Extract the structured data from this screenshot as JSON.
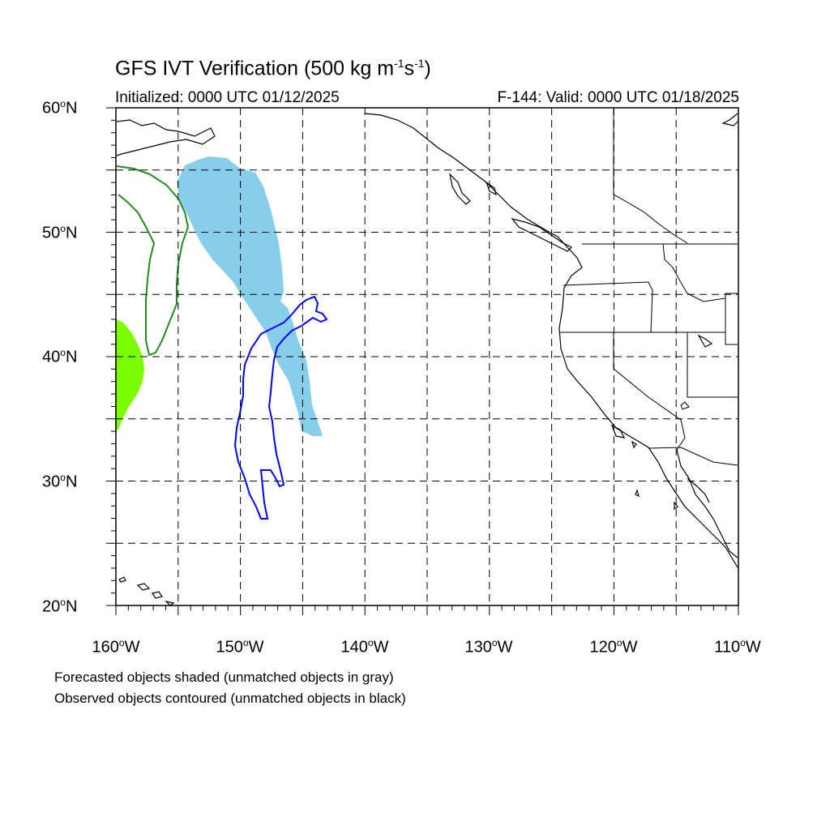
{
  "title": {
    "main": "GFS IVT Verification (500 kg m",
    "exp1": "-1",
    "mid": "s",
    "exp2": "-1",
    "end": ")"
  },
  "initialized": "Initialized: 0000 UTC 01/12/2025",
  "valid": "F-144: Valid: 0000 UTC 01/18/2025",
  "lat_labels": [
    "60",
    "50",
    "40",
    "30",
    "20"
  ],
  "lat_suffix": "N",
  "lon_labels": [
    "160",
    "150",
    "140",
    "130",
    "120",
    "110"
  ],
  "lon_suffix": "W",
  "degree_symbol": "o",
  "map_extent": {
    "lon_min": -160,
    "lon_max": -110,
    "lat_min": 20,
    "lat_max": 60
  },
  "notes": [
    "Forecasted objects shaded (unmatched objects in gray)",
    "Observed objects contoured (unmatched objects in black)"
  ],
  "colors": {
    "forecast_matched_blue": "#87ceeb",
    "forecast_edge_green": "#7cfc00",
    "observed_blue": "#0000ff",
    "observed_green": "#228b22",
    "coast": "#000000",
    "grid": "#000000"
  }
}
